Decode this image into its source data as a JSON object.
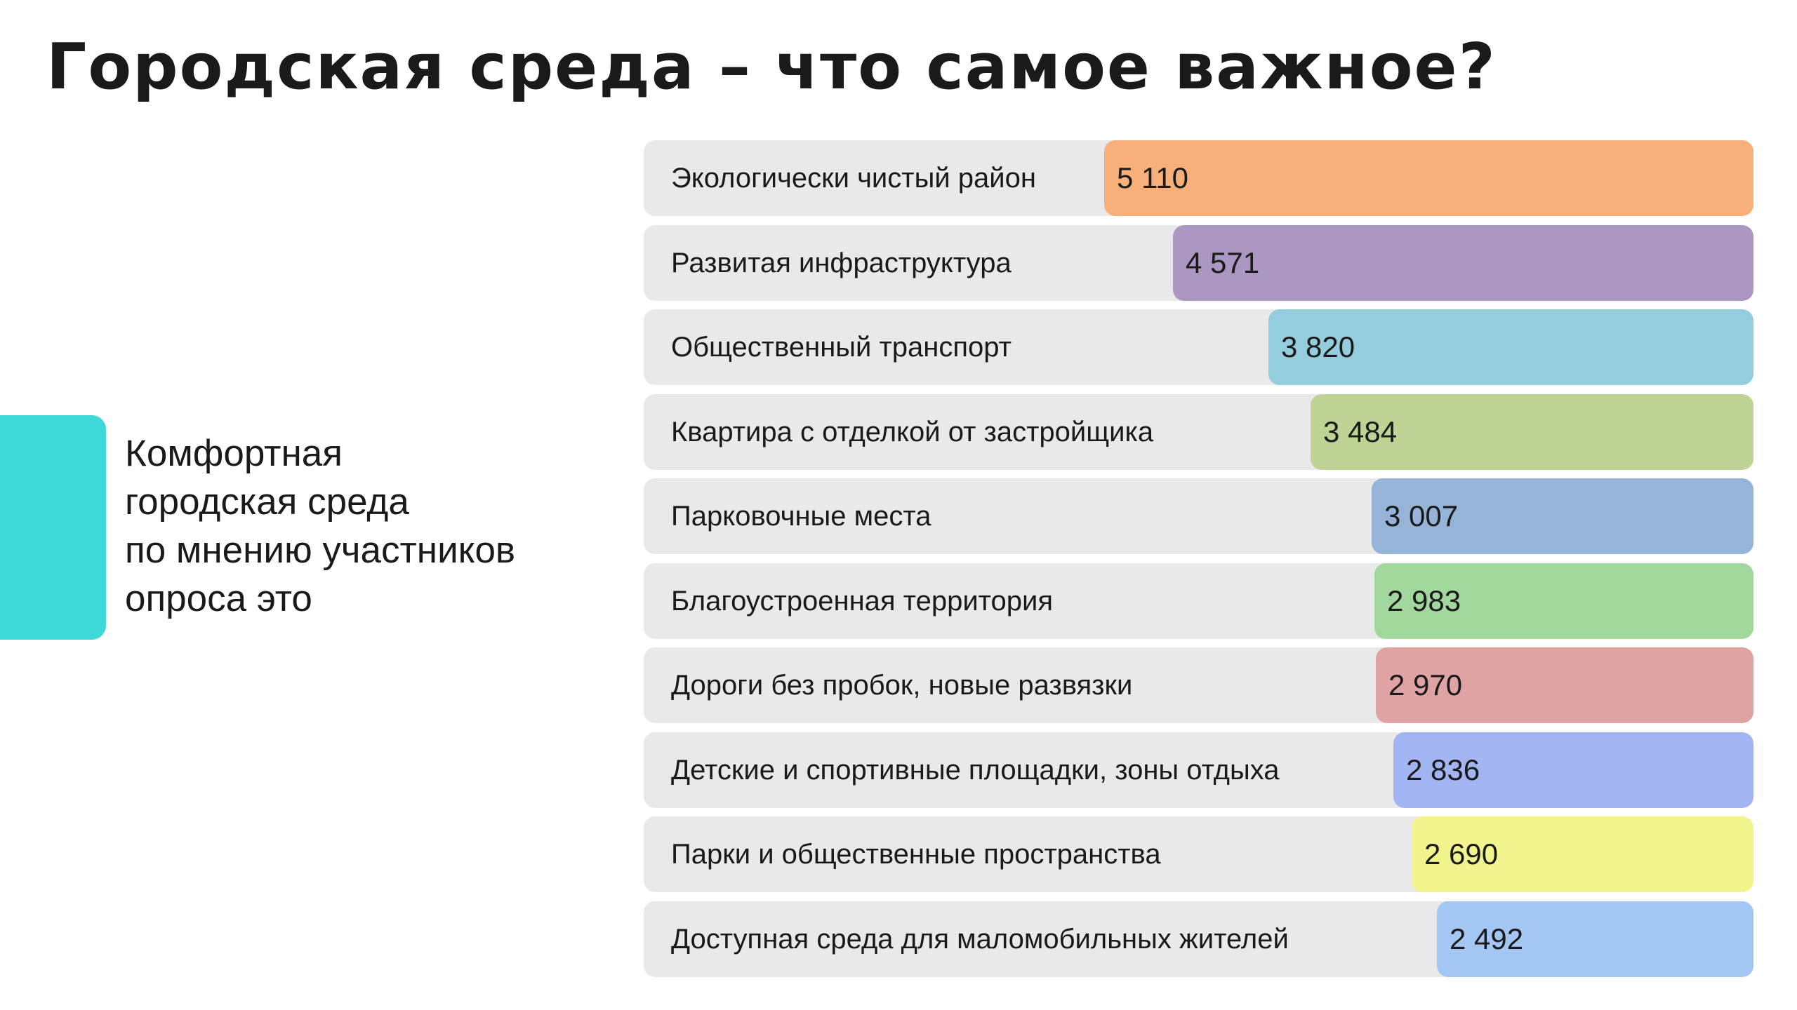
{
  "title": "Городская среда – что самое важное?",
  "caption": {
    "lines": [
      "Комфортная",
      "городская среда",
      "по мнению участников",
      "опроса это"
    ]
  },
  "colors": {
    "accent": "#3ed8d8",
    "track": "#e9e9e9"
  },
  "chart_data": {
    "type": "bar",
    "orientation": "horizontal",
    "categories": [
      "Экологически чистый район",
      "Развитая инфраструктура",
      "Общественный транспорт",
      "Квартира с отделкой от застройщика",
      "Парковочные места",
      "Благоустроенная территория",
      "Дороги без пробок, новые развязки",
      "Детские и спортивные площадки, зоны отдыха",
      "Парки и общественные пространства",
      "Доступная среда для маломобильных жителей"
    ],
    "values": [
      5110,
      4571,
      3820,
      3484,
      3007,
      2983,
      2970,
      2836,
      2690,
      2492
    ],
    "value_labels": [
      "5 110",
      "4 571",
      "3 820",
      "3 484",
      "3 007",
      "2 983",
      "2 970",
      "2 836",
      "2 690",
      "2 492"
    ],
    "colors": [
      "#f7b07a",
      "#ab97c2",
      "#94cede",
      "#bfd394",
      "#96b4d8",
      "#a2d89d",
      "#e0a3a3",
      "#a2b5f2",
      "#f2f48e",
      "#a4c6f3"
    ],
    "title": "",
    "xlabel": "",
    "ylabel": "",
    "legend": "none",
    "grid": false
  }
}
